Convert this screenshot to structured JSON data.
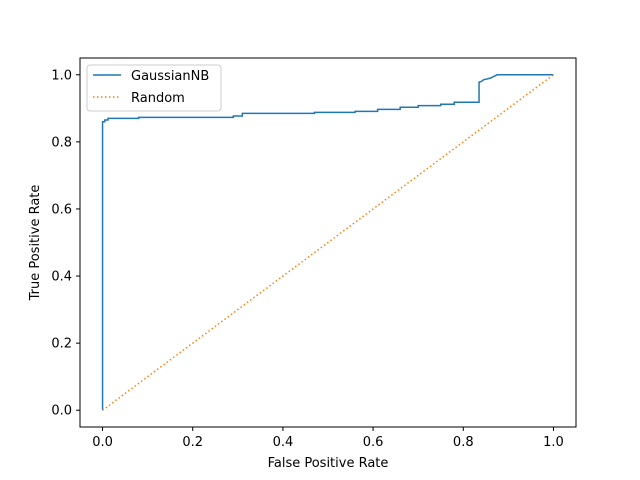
{
  "chart_data": {
    "type": "line",
    "title": "",
    "xlabel": "False Positive Rate",
    "ylabel": "True Positive Rate",
    "xlim": [
      -0.05,
      1.05
    ],
    "ylim": [
      -0.05,
      1.05
    ],
    "xticks": [
      0.0,
      0.2,
      0.4,
      0.6,
      0.8,
      1.0
    ],
    "yticks": [
      0.0,
      0.2,
      0.4,
      0.6,
      0.8,
      1.0
    ],
    "xtick_labels": [
      "0.0",
      "0.2",
      "0.4",
      "0.6",
      "0.8",
      "1.0"
    ],
    "ytick_labels": [
      "0.0",
      "0.2",
      "0.4",
      "0.6",
      "0.8",
      "1.0"
    ],
    "grid": false,
    "legend_position": "top-left",
    "series": [
      {
        "name": "GaussianNB",
        "style": "solid",
        "color": "#1f77b4",
        "x": [
          0.0,
          0.0,
          0.005,
          0.005,
          0.012,
          0.012,
          0.08,
          0.08,
          0.29,
          0.29,
          0.31,
          0.31,
          0.47,
          0.47,
          0.56,
          0.56,
          0.61,
          0.61,
          0.66,
          0.66,
          0.7,
          0.7,
          0.75,
          0.75,
          0.78,
          0.78,
          0.835,
          0.835,
          0.84,
          0.845,
          0.86,
          0.875,
          0.88,
          1.0
        ],
        "y": [
          0.0,
          0.86,
          0.86,
          0.865,
          0.865,
          0.87,
          0.87,
          0.873,
          0.873,
          0.877,
          0.877,
          0.885,
          0.885,
          0.888,
          0.888,
          0.891,
          0.891,
          0.897,
          0.897,
          0.903,
          0.903,
          0.908,
          0.908,
          0.912,
          0.912,
          0.918,
          0.918,
          0.978,
          0.98,
          0.985,
          0.99,
          1.0,
          1.0,
          1.0
        ]
      },
      {
        "name": "Random",
        "style": "dotted",
        "color": "#ff7f0e",
        "x": [
          0.0,
          1.0
        ],
        "y": [
          0.0,
          1.0
        ]
      }
    ]
  }
}
